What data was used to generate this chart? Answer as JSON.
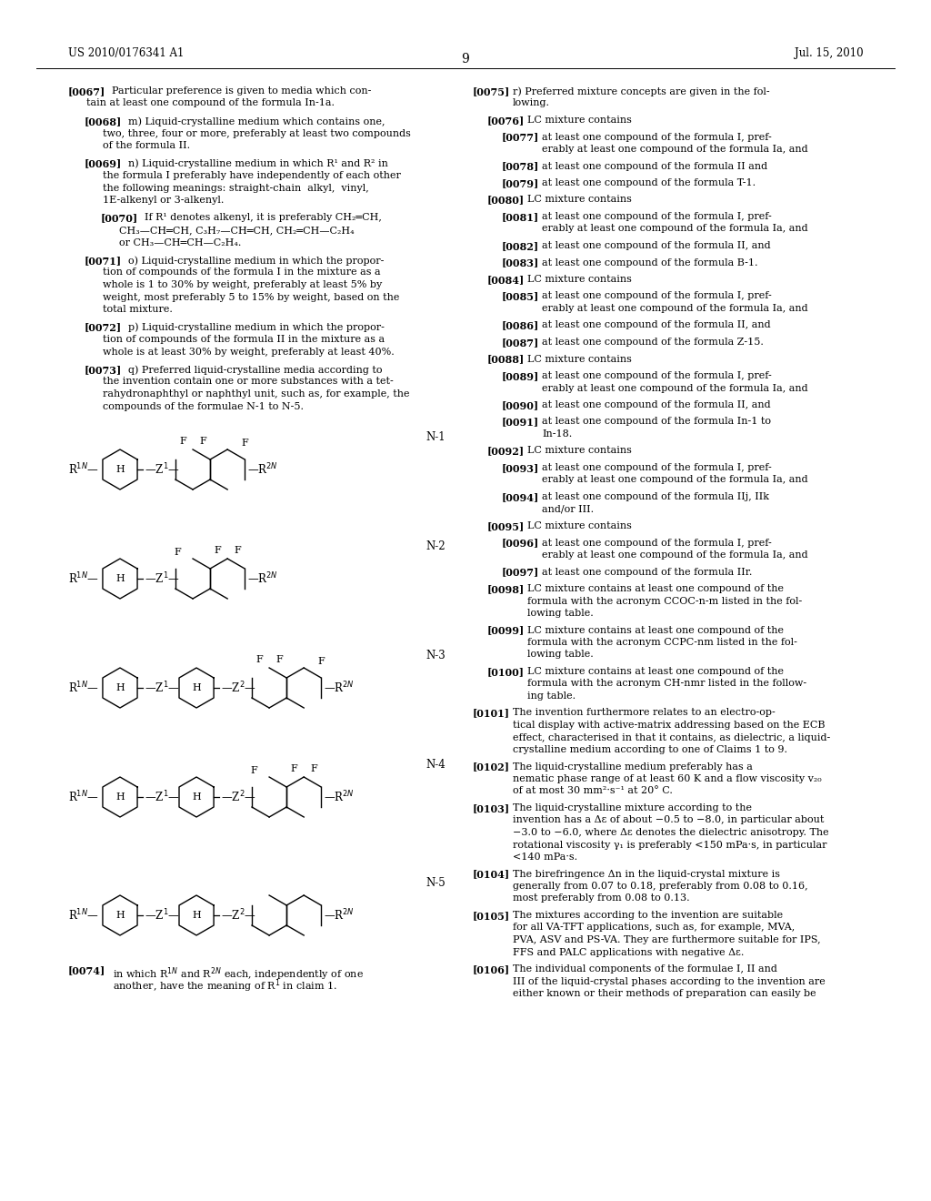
{
  "page_number": "9",
  "header_left": "US 2010/0176341 A1",
  "header_right": "Jul. 15, 2010",
  "background_color": "#ffffff",
  "text_color": "#000000",
  "left_paragraphs": [
    {
      "tag": "[0067]",
      "indent": 0,
      "text": "Particular preference is given to media which con-\ntain at least one compound of the formula In-1a."
    },
    {
      "tag": "[0068]",
      "indent": 1,
      "text": "m) Liquid-crystalline medium which contains one,\ntwo, three, four or more, preferably at least two compounds\nof the formula II."
    },
    {
      "tag": "[0069]",
      "indent": 1,
      "text": "n) Liquid-crystalline medium in which R¹ and R² in\nthe formula I preferably have independently of each other\nthe following meanings: straight-chain  alkyl,  vinyl,\n1E-alkenyl or 3-alkenyl."
    },
    {
      "tag": "[0070]",
      "indent": 2,
      "text": "If R¹ denotes alkenyl, it is preferably CH₂═CH,\nCH₃—CH═CH, C₃H₇—CH═CH, CH₂═CH—C₂H₄\nor CH₃—CH═CH—C₂H₄."
    },
    {
      "tag": "[0071]",
      "indent": 1,
      "text": "o) Liquid-crystalline medium in which the propor-\ntion of compounds of the formula I in the mixture as a\nwhole is 1 to 30% by weight, preferably at least 5% by\nweight, most preferably 5 to 15% by weight, based on the\ntotal mixture."
    },
    {
      "tag": "[0072]",
      "indent": 1,
      "text": "p) Liquid-crystalline medium in which the propor-\ntion of compounds of the formula II in the mixture as a\nwhole is at least 30% by weight, preferably at least 40%."
    },
    {
      "tag": "[0073]",
      "indent": 1,
      "text": "q) Preferred liquid-crystalline media according to\nthe invention contain one or more substances with a tet-\nrahydronaphthyl or naphthyl unit, such as, for example, the\ncompounds of the formulae N-1 to N-5."
    },
    {
      "tag": "[0074]",
      "indent": 1,
      "text": "in which R¹ᴺ and R²ᴺ each, independently of one\nanother, have the meaning of R¹ in claim 1."
    }
  ],
  "right_paragraphs": [
    {
      "tag": "[0075]",
      "indent": 0,
      "text": "r) Preferred mixture concepts are given in the fol-\nlowing."
    },
    {
      "tag": "[0076]",
      "indent": 1,
      "text": "LC mixture contains"
    },
    {
      "tag": "[0077]",
      "indent": 2,
      "text": "at least one compound of the formula I, pref-\nerably at least one compound of the formula Ia, and"
    },
    {
      "tag": "[0078]",
      "indent": 2,
      "text": "at least one compound of the formula II and"
    },
    {
      "tag": "[0079]",
      "indent": 2,
      "text": "at least one compound of the formula T-1."
    },
    {
      "tag": "[0080]",
      "indent": 1,
      "text": "LC mixture contains"
    },
    {
      "tag": "[0081]",
      "indent": 2,
      "text": "at least one compound of the formula I, pref-\nerably at least one compound of the formula Ia, and"
    },
    {
      "tag": "[0082]",
      "indent": 2,
      "text": "at least one compound of the formula II, and"
    },
    {
      "tag": "[0083]",
      "indent": 2,
      "text": "at least one compound of the formula B-1."
    },
    {
      "tag": "[0084]",
      "indent": 1,
      "text": "LC mixture contains"
    },
    {
      "tag": "[0085]",
      "indent": 2,
      "text": "at least one compound of the formula I, pref-\nerably at least one compound of the formula Ia, and"
    },
    {
      "tag": "[0086]",
      "indent": 2,
      "text": "at least one compound of the formula II, and"
    },
    {
      "tag": "[0087]",
      "indent": 2,
      "text": "at least one compound of the formula Z-15."
    },
    {
      "tag": "[0088]",
      "indent": 1,
      "text": "LC mixture contains"
    },
    {
      "tag": "[0089]",
      "indent": 2,
      "text": "at least one compound of the formula I, pref-\nerably at least one compound of the formula Ia, and"
    },
    {
      "tag": "[0090]",
      "indent": 2,
      "text": "at least one compound of the formula II, and"
    },
    {
      "tag": "[0091]",
      "indent": 2,
      "text": "at least one compound of the formula In-1 to\nIn-18."
    },
    {
      "tag": "[0092]",
      "indent": 1,
      "text": "LC mixture contains"
    },
    {
      "tag": "[0093]",
      "indent": 2,
      "text": "at least one compound of the formula I, pref-\nerably at least one compound of the formula Ia, and"
    },
    {
      "tag": "[0094]",
      "indent": 2,
      "text": "at least one compound of the formula IIj, IIk\nand/or III."
    },
    {
      "tag": "[0095]",
      "indent": 1,
      "text": "LC mixture contains"
    },
    {
      "tag": "[0096]",
      "indent": 2,
      "text": "at least one compound of the formula I, pref-\nerably at least one compound of the formula Ia, and"
    },
    {
      "tag": "[0097]",
      "indent": 2,
      "text": "at least one compound of the formula IIr."
    },
    {
      "tag": "[0098]",
      "indent": 1,
      "text": "LC mixture contains at least one compound of the\nformula with the acronym CCOC-n-m listed in the fol-\nlowing table."
    },
    {
      "tag": "[0099]",
      "indent": 1,
      "text": "LC mixture contains at least one compound of the\nformula with the acronym CCPC-nm listed in the fol-\nlowing table."
    },
    {
      "tag": "[0100]",
      "indent": 1,
      "text": "LC mixture contains at least one compound of the\nformula with the acronym CH-nmr listed in the follow-\ning table."
    },
    {
      "tag": "[0101]",
      "indent": 0,
      "text": "The invention furthermore relates to an electro-op-\ntical display with active-matrix addressing based on the ECB\neffect, characterised in that it contains, as dielectric, a liquid-\ncrystalline medium according to one of Claims 1 to 9."
    },
    {
      "tag": "[0102]",
      "indent": 0,
      "text": "The liquid-crystalline medium preferably has a\nnematic phase range of at least 60 K and a flow viscosity v₂₀\nof at most 30 mm²·s⁻¹ at 20° C."
    },
    {
      "tag": "[0103]",
      "indent": 0,
      "text": "The liquid-crystalline mixture according to the\ninvention has a Δε of about −0.5 to −8.0, in particular about\n−3.0 to −6.0, where Δε denotes the dielectric anisotropy. The\nrotational viscosity γ₁ is preferably <150 mPa·s, in particular\n<140 mPa·s."
    },
    {
      "tag": "[0104]",
      "indent": 0,
      "text": "The birefringence Δn in the liquid-crystal mixture is\ngenerally from 0.07 to 0.18, preferably from 0.08 to 0.16,\nmost preferably from 0.08 to 0.13."
    },
    {
      "tag": "[0105]",
      "indent": 0,
      "text": "The mixtures according to the invention are suitable\nfor all VA-TFT applications, such as, for example, MVA,\nPVA, ASV and PS-VA. They are furthermore suitable for IPS,\nFFS and PALC applications with negative Δε."
    },
    {
      "tag": "[0106]",
      "indent": 0,
      "text": "The individual components of the formulae I, II and\nIII of the liquid-crystal phases according to the invention are\neither known or their methods of preparation can easily be"
    }
  ]
}
